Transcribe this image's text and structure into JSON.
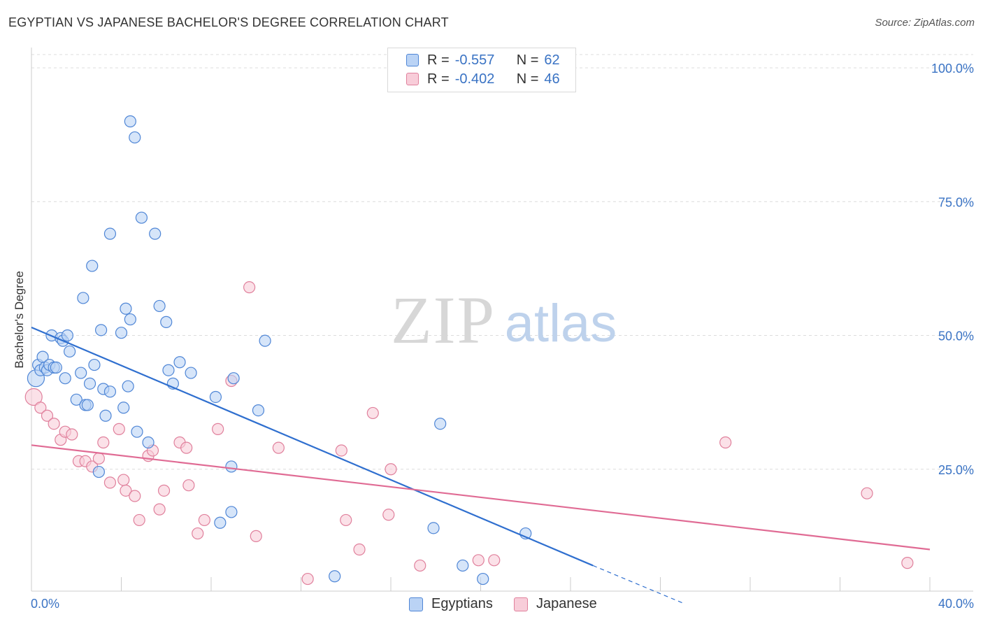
{
  "title": "EGYPTIAN VS JAPANESE BACHELOR'S DEGREE CORRELATION CHART",
  "source": "Source: ZipAtlas.com",
  "watermark": {
    "zip": "ZIP",
    "atlas": "atlas"
  },
  "legend": {
    "rows": [
      {
        "r_label": "R =",
        "r_value": "-0.557",
        "n_label": "N =",
        "n_value": "62",
        "color": "#4f86d6",
        "fill": "#bad3f5"
      },
      {
        "r_label": "R =",
        "r_value": "-0.402",
        "n_label": "N =",
        "n_value": "46",
        "color": "#e0809c",
        "fill": "#f8cdd9"
      }
    ]
  },
  "bottom_legend": [
    {
      "label": "Egyptians",
      "color": "#4f86d6",
      "fill": "#bad3f5"
    },
    {
      "label": "Japanese",
      "color": "#e0809c",
      "fill": "#f8cdd9"
    }
  ],
  "chart_data": {
    "type": "scatter",
    "title": "EGYPTIAN VS JAPANESE BACHELOR'S DEGREE CORRELATION CHART",
    "xlabel": "",
    "ylabel": "Bachelor's Degree",
    "xlim": [
      0,
      40
    ],
    "ylim": [
      0,
      100
    ],
    "x_tick_labels": [
      "0.0%",
      "40.0%"
    ],
    "y_ticks": [
      25,
      50,
      75,
      100
    ],
    "y_tick_labels": [
      "25.0%",
      "50.0%",
      "75.0%",
      "100.0%"
    ],
    "grid": true,
    "series": [
      {
        "name": "Egyptians",
        "color": "#4f86d6",
        "fill": "#bad3f5",
        "points": [
          [
            0.2,
            42
          ],
          [
            0.3,
            44.5
          ],
          [
            0.4,
            43.5
          ],
          [
            0.5,
            46
          ],
          [
            0.6,
            44
          ],
          [
            0.7,
            43.5
          ],
          [
            0.8,
            44.5
          ],
          [
            0.9,
            50
          ],
          [
            1.0,
            44
          ],
          [
            1.1,
            44
          ],
          [
            1.3,
            49.5
          ],
          [
            1.4,
            49
          ],
          [
            1.5,
            42
          ],
          [
            1.6,
            50
          ],
          [
            1.7,
            47
          ],
          [
            2.0,
            38
          ],
          [
            2.2,
            43
          ],
          [
            2.4,
            37
          ],
          [
            2.5,
            37
          ],
          [
            2.6,
            41
          ],
          [
            2.8,
            44.5
          ],
          [
            3.0,
            24.5
          ],
          [
            3.1,
            51
          ],
          [
            3.2,
            40
          ],
          [
            3.3,
            35
          ],
          [
            3.5,
            39.5
          ],
          [
            2.3,
            57
          ],
          [
            2.7,
            63
          ],
          [
            3.5,
            69
          ],
          [
            4.0,
            50.5
          ],
          [
            4.1,
            36.5
          ],
          [
            4.2,
            55
          ],
          [
            4.3,
            40.5
          ],
          [
            4.4,
            53
          ],
          [
            4.4,
            90
          ],
          [
            4.6,
            87
          ],
          [
            4.7,
            32
          ],
          [
            4.9,
            72
          ],
          [
            5.2,
            30
          ],
          [
            5.5,
            69
          ],
          [
            5.7,
            55.5
          ],
          [
            6.0,
            52.5
          ],
          [
            6.1,
            43.5
          ],
          [
            6.3,
            41
          ],
          [
            6.6,
            45
          ],
          [
            7.1,
            43
          ],
          [
            8.2,
            38.5
          ],
          [
            8.4,
            15
          ],
          [
            8.9,
            17
          ],
          [
            8.9,
            25.5
          ],
          [
            9.0,
            42
          ],
          [
            10.1,
            36
          ],
          [
            10.4,
            49
          ],
          [
            13.5,
            5
          ],
          [
            17.9,
            14
          ],
          [
            18.2,
            33.5
          ],
          [
            19.2,
            7
          ],
          [
            20.1,
            4.5
          ],
          [
            22.0,
            13
          ]
        ]
      },
      {
        "name": "Japanese",
        "color": "#e0809c",
        "fill": "#f8cdd9",
        "points": [
          [
            0.1,
            38.5
          ],
          [
            0.4,
            36.5
          ],
          [
            0.7,
            35
          ],
          [
            1.0,
            33.5
          ],
          [
            1.3,
            30.5
          ],
          [
            1.5,
            32
          ],
          [
            1.8,
            31.5
          ],
          [
            2.1,
            26.5
          ],
          [
            2.4,
            26.5
          ],
          [
            2.7,
            25.5
          ],
          [
            3.0,
            27
          ],
          [
            3.2,
            30
          ],
          [
            3.5,
            22.5
          ],
          [
            3.9,
            32.5
          ],
          [
            4.1,
            23
          ],
          [
            4.2,
            21
          ],
          [
            4.6,
            20
          ],
          [
            4.8,
            15.5
          ],
          [
            5.2,
            27.5
          ],
          [
            5.4,
            28.5
          ],
          [
            5.7,
            17.5
          ],
          [
            5.9,
            21
          ],
          [
            6.6,
            30
          ],
          [
            6.9,
            29
          ],
          [
            7.0,
            22
          ],
          [
            7.4,
            13
          ],
          [
            7.7,
            15.5
          ],
          [
            8.3,
            32.5
          ],
          [
            8.9,
            41.5
          ],
          [
            9.7,
            59
          ],
          [
            10.0,
            12.5
          ],
          [
            11.0,
            29
          ],
          [
            12.3,
            4.5
          ],
          [
            13.8,
            28.5
          ],
          [
            14.0,
            15.5
          ],
          [
            14.6,
            10
          ],
          [
            15.2,
            35.5
          ],
          [
            15.9,
            16.5
          ],
          [
            16.0,
            25
          ],
          [
            17.3,
            7
          ],
          [
            19.9,
            8
          ],
          [
            20.6,
            8
          ],
          [
            30.9,
            30
          ],
          [
            37.2,
            20.5
          ],
          [
            39.0,
            7.5
          ]
        ]
      }
    ],
    "trend_lines": [
      {
        "series": "Egyptians",
        "start": [
          0,
          51.5
        ],
        "end": [
          25,
          7
        ],
        "dashed_to": [
          29,
          0
        ]
      },
      {
        "series": "Japanese",
        "start": [
          0,
          29.5
        ],
        "end": [
          40,
          10
        ]
      }
    ]
  }
}
